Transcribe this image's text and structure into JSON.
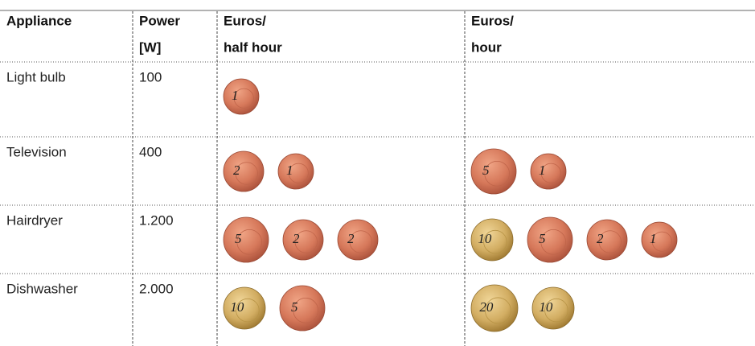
{
  "header": {
    "columns": [
      [
        "Appliance"
      ],
      [
        "Power",
        "[W]"
      ],
      [
        "Euros/",
        "half hour"
      ],
      [
        "Euros/",
        "hour"
      ]
    ]
  },
  "rows": [
    {
      "appliance": "Light bulb",
      "power": "100",
      "half_hour": [
        1
      ]
    },
    {
      "appliance": "Television",
      "power": "400",
      "half_hour": [
        2,
        1
      ],
      "hour": [
        5,
        1
      ]
    },
    {
      "appliance": "Hairdryer",
      "power": "1.200",
      "half_hour": [
        5,
        2,
        2
      ],
      "hour": [
        10,
        5,
        2,
        1
      ]
    },
    {
      "appliance": "Dishwasher",
      "power": "2.000",
      "half_hour": [
        10,
        5
      ],
      "hour": [
        20,
        10
      ]
    }
  ]
}
